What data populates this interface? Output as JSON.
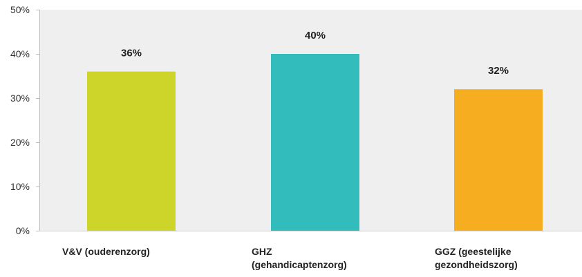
{
  "chart_data": {
    "type": "bar",
    "categories": [
      [
        "V&V (ouderenzorg)"
      ],
      [
        "GHZ",
        "(gehandicaptenzorg)"
      ],
      [
        "GGZ (geestelijke",
        "gezondheidszorg)"
      ]
    ],
    "values": [
      36,
      40,
      32
    ],
    "data_labels": [
      "36%",
      "40%",
      "32%"
    ],
    "colors": [
      "#cdd42a",
      "#33bcbc",
      "#f6ad20"
    ],
    "ylim": [
      0,
      50
    ],
    "yticks": [
      {
        "value": 0,
        "label": "0%"
      },
      {
        "value": 10,
        "label": "10%"
      },
      {
        "value": 20,
        "label": "20%"
      },
      {
        "value": 30,
        "label": "30%"
      },
      {
        "value": 40,
        "label": "40%"
      },
      {
        "value": 50,
        "label": "50%"
      }
    ],
    "grid": false,
    "plot_background": "#efefef",
    "title": "",
    "xlabel": "",
    "ylabel": ""
  }
}
